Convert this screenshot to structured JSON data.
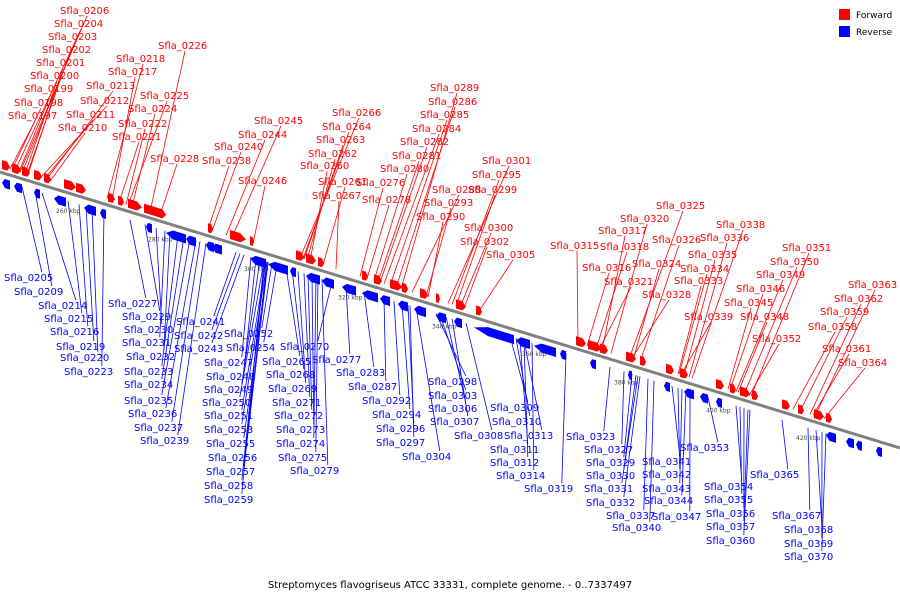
{
  "caption": "Streptomyces flavogriseus ATCC 33331, complete genome. - 0..7337497",
  "legend": [
    {
      "label": "Forward",
      "color": "#ff0000"
    },
    {
      "label": "Reverse",
      "color": "#0000ff"
    }
  ],
  "colors": {
    "forward": "#ff0000",
    "reverse": "#0000ff",
    "axis": "#808080"
  },
  "ticks": [
    "260 kbp",
    "280 kbp",
    "300 kbp",
    "320 kbp",
    "340 kbp",
    "360 kbp",
    "380 kbp",
    "400 kbp",
    "420 kbp"
  ],
  "forward_labels": [
    "Sfla_0206",
    "Sfla_0204",
    "Sfla_0203",
    "Sfla_0202",
    "Sfla_0201",
    "Sfla_0200",
    "Sfla_0199",
    "Sfla_0198",
    "Sfla_0197",
    "Sfla_0212",
    "Sfla_0213",
    "Sfla_0211",
    "Sfla_0210",
    "Sfla_0218",
    "Sfla_0217",
    "Sfla_0226",
    "Sfla_0225",
    "Sfla_0224",
    "Sfla_0222",
    "Sfla_0221",
    "Sfla_0228",
    "Sfla_0245",
    "Sfla_0244",
    "Sfla_0240",
    "Sfla_0238",
    "Sfla_0246",
    "Sfla_0266",
    "Sfla_0264",
    "Sfla_0263",
    "Sfla_0262",
    "Sfla_0260",
    "Sfla_0261",
    "Sfla_0267",
    "Sfla_0289",
    "Sfla_0286",
    "Sfla_0285",
    "Sfla_0284",
    "Sfla_0282",
    "Sfla_0281",
    "Sfla_0280",
    "Sfla_0276",
    "Sfla_0288",
    "Sfla_0278",
    "Sfla_0293",
    "Sfla_0290",
    "Sfla_0301",
    "Sfla_0295",
    "Sfla_0299",
    "Sfla_0300",
    "Sfla_0302",
    "Sfla_0305",
    "Sfla_0325",
    "Sfla_0320",
    "Sfla_0317",
    "Sfla_0318",
    "Sfla_0315",
    "Sfla_0316",
    "Sfla_0321",
    "Sfla_0326",
    "Sfla_0324",
    "Sfla_0328",
    "Sfla_0338",
    "Sfla_0336",
    "Sfla_0335",
    "Sfla_0334",
    "Sfla_0333",
    "Sfla_0339",
    "Sfla_0351",
    "Sfla_0350",
    "Sfla_0349",
    "Sfla_0346",
    "Sfla_0345",
    "Sfla_0348",
    "Sfla_0352",
    "Sfla_0363",
    "Sfla_0362",
    "Sfla_0359",
    "Sfla_0358",
    "Sfla_0361",
    "Sfla_0364"
  ],
  "reverse_labels": [
    "Sfla_0205",
    "Sfla_0209",
    "Sfla_0214",
    "Sfla_0215",
    "Sfla_0216",
    "Sfla_0219",
    "Sfla_0220",
    "Sfla_0223",
    "Sfla_0227",
    "Sfla_0229",
    "Sfla_0230",
    "Sfla_0231",
    "Sfla_0232",
    "Sfla_0233",
    "Sfla_0234",
    "Sfla_0235",
    "Sfla_0236",
    "Sfla_0237",
    "Sfla_0239",
    "Sfla_0241",
    "Sfla_0242",
    "Sfla_0243",
    "Sfla_0247",
    "Sfla_0248",
    "Sfla_0249",
    "Sfla_0250",
    "Sfla_0251",
    "Sfla_0253",
    "Sfla_0255",
    "Sfla_0256",
    "Sfla_0257",
    "Sfla_0258",
    "Sfla_0259",
    "Sfla_0252",
    "Sfla_0254",
    "Sfla_0265",
    "Sfla_0268",
    "Sfla_0269",
    "Sfla_0271",
    "Sfla_0272",
    "Sfla_0273",
    "Sfla_0274",
    "Sfla_0275",
    "Sfla_0279",
    "Sfla_0270",
    "Sfla_0277",
    "Sfla_0283",
    "Sfla_0287",
    "Sfla_0292",
    "Sfla_0294",
    "Sfla_0296",
    "Sfla_0297",
    "Sfla_0304",
    "Sfla_0298",
    "Sfla_0303",
    "Sfla_0306",
    "Sfla_0307",
    "Sfla_0308",
    "Sfla_0309",
    "Sfla_0310",
    "Sfla_0313",
    "Sfla_0311",
    "Sfla_0312",
    "Sfla_0314",
    "Sfla_0319",
    "Sfla_0323",
    "Sfla_0327",
    "Sfla_0329",
    "Sfla_0330",
    "Sfla_0331",
    "Sfla_0332",
    "Sfla_0337",
    "Sfla_0340",
    "Sfla_0341",
    "Sfla_0342",
    "Sfla_0343",
    "Sfla_0344",
    "Sfla_0347",
    "Sfla_0353",
    "Sfla_0354",
    "Sfla_0355",
    "Sfla_0356",
    "Sfla_0357",
    "Sfla_0360",
    "Sfla_0365",
    "Sfla_0367",
    "Sfla_0368",
    "Sfla_0369",
    "Sfla_0370"
  ]
}
